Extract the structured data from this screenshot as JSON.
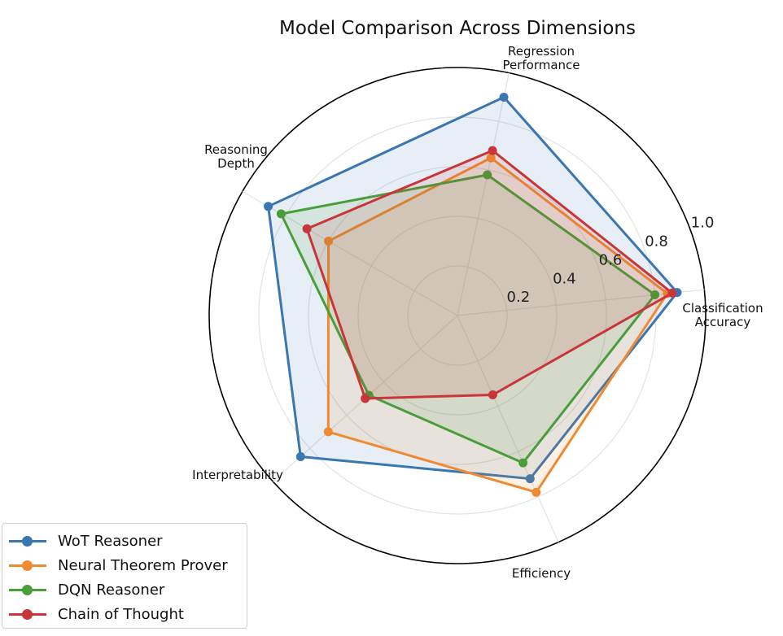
{
  "chart_data": {
    "type": "radar",
    "title": "Model Comparison Across Dimensions",
    "axes": [
      "Classification\nAccuracy",
      "Regression\nPerformance",
      "Reasoning\nDepth",
      "Interpretability",
      "Efficiency"
    ],
    "rlim": [
      0,
      1.0
    ],
    "rticks": [
      0.2,
      0.4,
      0.6,
      0.8,
      1.0
    ],
    "rtick_labels": [
      "0.2",
      "0.4",
      "0.6",
      "0.8",
      "1.0"
    ],
    "grid": true,
    "legend_position": "bottom-left",
    "series": [
      {
        "name": "WoT Reasoner",
        "color": "#3a76b0",
        "values": [
          0.89,
          0.9,
          0.88,
          0.85,
          0.72
        ]
      },
      {
        "name": "Neural Theorem Prover",
        "color": "#f08a32",
        "values": [
          0.85,
          0.65,
          0.6,
          0.7,
          0.78
        ]
      },
      {
        "name": "DQN Reasoner",
        "color": "#4a9e3a",
        "values": [
          0.8,
          0.58,
          0.82,
          0.48,
          0.65
        ]
      },
      {
        "name": "Chain of Thought",
        "color": "#c8363a",
        "values": [
          0.87,
          0.68,
          0.7,
          0.5,
          0.35
        ]
      }
    ]
  }
}
